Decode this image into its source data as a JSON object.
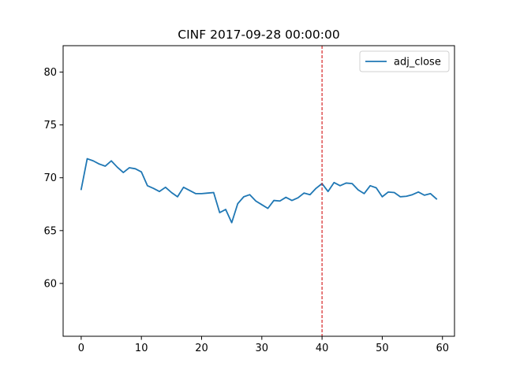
{
  "chart_data": {
    "type": "line",
    "title": "CINF 2017-09-28 00:00:00",
    "xlabel": "",
    "ylabel": "",
    "xlim": [
      -3,
      62
    ],
    "ylim": [
      55,
      82.5
    ],
    "x_ticks": [
      0,
      10,
      20,
      30,
      40,
      50,
      60
    ],
    "y_ticks": [
      60,
      65,
      70,
      75,
      80
    ],
    "grid": false,
    "legend": {
      "placement": "top-right"
    },
    "series": [
      {
        "name": "adj_close",
        "color": "#1f77b4",
        "x": [
          0,
          1,
          2,
          3,
          4,
          5,
          6,
          7,
          8,
          9,
          10,
          11,
          12,
          13,
          14,
          15,
          16,
          17,
          18,
          19,
          20,
          21,
          22,
          23,
          24,
          25,
          26,
          27,
          28,
          29,
          30,
          31,
          32,
          33,
          34,
          35,
          36,
          37,
          38,
          39,
          40,
          41,
          42,
          43,
          44,
          45,
          46,
          47,
          48,
          49,
          50,
          51,
          52,
          53,
          54,
          55,
          56,
          57,
          58,
          59
        ],
        "y": [
          68.9,
          71.8,
          71.6,
          71.3,
          71.1,
          71.6,
          71.0,
          70.5,
          70.95,
          70.85,
          70.55,
          69.25,
          69.0,
          68.7,
          69.1,
          68.6,
          68.2,
          69.1,
          68.8,
          68.5,
          68.5,
          68.55,
          68.6,
          66.7,
          67.0,
          65.75,
          67.55,
          68.2,
          68.4,
          67.8,
          67.45,
          67.1,
          67.85,
          67.8,
          68.15,
          67.85,
          68.1,
          68.55,
          68.4,
          69.0,
          69.45,
          68.7,
          69.55,
          69.25,
          69.5,
          69.45,
          68.85,
          68.5,
          69.25,
          69.05,
          68.2,
          68.65,
          68.6,
          68.2,
          68.25,
          68.4,
          68.65,
          68.35,
          68.5,
          68.0
        ]
      }
    ],
    "annotations": [
      {
        "type": "vline",
        "x": 40,
        "color": "#d62728",
        "style": "dashed"
      }
    ]
  }
}
